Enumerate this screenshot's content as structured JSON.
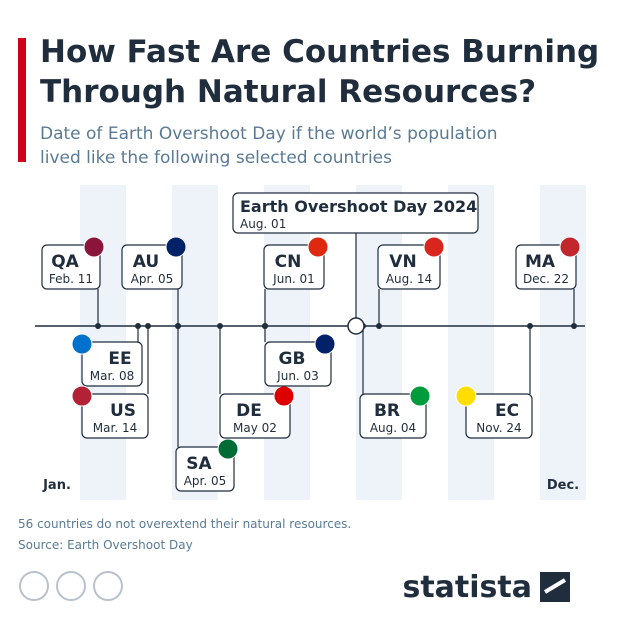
{
  "header": {
    "title_lines": [
      "How Fast Are Countries Burning",
      "Through Natural Resources?"
    ],
    "subtitle_lines": [
      "Date of Earth Overshoot Day if the world’s population",
      "lived like the following selected countries"
    ]
  },
  "highlight": {
    "label": "Earth Overshoot Day 2024",
    "date": "Aug. 01"
  },
  "countries": [
    {
      "code": "QA",
      "date": "Feb. 11"
    },
    {
      "code": "AU",
      "date": "Apr. 05"
    },
    {
      "code": "CN",
      "date": "Jun. 01"
    },
    {
      "code": "VN",
      "date": "Aug. 14"
    },
    {
      "code": "MA",
      "date": "Dec. 22"
    },
    {
      "code": "EE",
      "date": "Mar. 08"
    },
    {
      "code": "US",
      "date": "Mar. 14"
    },
    {
      "code": "SA",
      "date": "Apr. 05"
    },
    {
      "code": "DE",
      "date": "May 02"
    },
    {
      "code": "GB",
      "date": "Jun. 03"
    },
    {
      "code": "BR",
      "date": "Aug. 04"
    },
    {
      "code": "EC",
      "date": "Nov. 24"
    }
  ],
  "axis": {
    "start": "Jan.",
    "end": "Dec."
  },
  "footer": {
    "note": "56 countries do not overextend their natural resources.",
    "source": "Source: Earth Overshoot Day"
  },
  "brand": "statista"
}
